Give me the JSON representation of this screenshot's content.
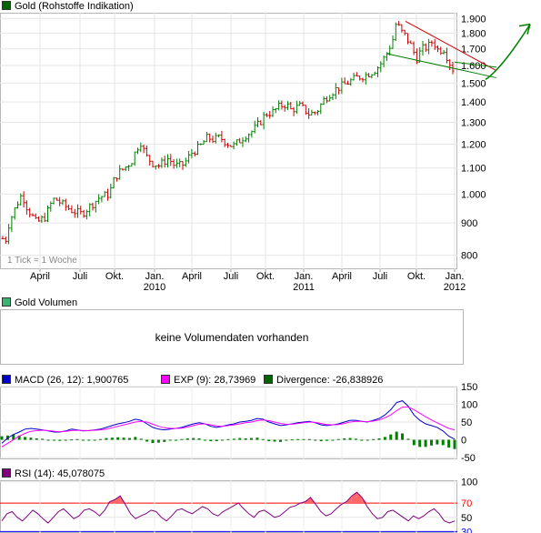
{
  "panels": {
    "price_title": "Gold (Rohstoffe Indikation)",
    "price_color": "#006400",
    "tick_note": "1 Tick = 1 Woche",
    "volume_title": "Gold Volumen",
    "volume_color": "#3cb371",
    "volume_message": "keine Volumendaten vorhanden",
    "macd_label": "MACD (26, 12): 1,900765",
    "macd_color": "#0000cc",
    "exp_label": "EXP (9): 28,73969",
    "exp_color": "#ff00ff",
    "div_label": "Divergence: -26,838926",
    "div_color": "#006400",
    "rsi_label": "RSI (14): 45,078075",
    "rsi_color": "#800080"
  },
  "chart_data": [
    {
      "type": "bar",
      "title": "Gold (Rohstoffe Indikation)",
      "x_month_labels": [
        "April",
        "Juli",
        "Okt.",
        "Jan.",
        "April",
        "Juli",
        "Okt.",
        "Jan.",
        "April",
        "Juli",
        "Okt.",
        "Jan."
      ],
      "x_year_labels": [
        "2010",
        "2011",
        "2012"
      ],
      "y_ticks": [
        "1.900",
        "1.800",
        "1.700",
        "1.600",
        "1.500",
        "1.400",
        "1.300",
        "1.200",
        "1.100",
        "1.000",
        "900",
        "800"
      ],
      "ylim": [
        760,
        1940
      ],
      "log_scale": true,
      "price_path": [
        [
          0,
          880
        ],
        [
          5,
          830
        ],
        [
          10,
          900
        ],
        [
          18,
          960
        ],
        [
          24,
          1000
        ],
        [
          30,
          950
        ],
        [
          40,
          900
        ],
        [
          50,
          920
        ],
        [
          55,
          960
        ],
        [
          60,
          985
        ],
        [
          70,
          960
        ],
        [
          80,
          940
        ],
        [
          90,
          930
        ],
        [
          100,
          960
        ],
        [
          110,
          990
        ],
        [
          120,
          1000
        ],
        [
          125,
          1050
        ],
        [
          130,
          1080
        ],
        [
          140,
          1110
        ],
        [
          145,
          1130
        ],
        [
          150,
          1180
        ],
        [
          155,
          1210
        ],
        [
          160,
          1150
        ],
        [
          168,
          1120
        ],
        [
          175,
          1110
        ],
        [
          180,
          1125
        ],
        [
          185,
          1140
        ],
        [
          192,
          1110
        ],
        [
          200,
          1110
        ],
        [
          205,
          1130
        ],
        [
          210,
          1160
        ],
        [
          220,
          1190
        ],
        [
          228,
          1230
        ],
        [
          235,
          1220
        ],
        [
          242,
          1230
        ],
        [
          248,
          1210
        ],
        [
          256,
          1190
        ],
        [
          262,
          1210
        ],
        [
          270,
          1240
        ],
        [
          278,
          1260
        ],
        [
          286,
          1300
        ],
        [
          292,
          1340
        ],
        [
          300,
          1350
        ],
        [
          308,
          1380
        ],
        [
          315,
          1390
        ],
        [
          320,
          1360
        ],
        [
          330,
          1380
        ],
        [
          340,
          1340
        ],
        [
          348,
          1350
        ],
        [
          356,
          1410
        ],
        [
          362,
          1440
        ],
        [
          370,
          1470
        ],
        [
          378,
          1490
        ],
        [
          385,
          1510
        ],
        [
          392,
          1530
        ],
        [
          400,
          1540
        ],
        [
          408,
          1560
        ],
        [
          414,
          1580
        ],
        [
          420,
          1620
        ],
        [
          426,
          1680
        ],
        [
          432,
          1760
        ],
        [
          436,
          1880
        ],
        [
          440,
          1820
        ],
        [
          446,
          1780
        ],
        [
          452,
          1720
        ],
        [
          458,
          1640
        ],
        [
          464,
          1700
        ],
        [
          470,
          1710
        ],
        [
          476,
          1750
        ],
        [
          482,
          1690
        ],
        [
          488,
          1700
        ],
        [
          494,
          1620
        ],
        [
          500,
          1560
        ],
        [
          504,
          1620
        ],
        [
          508,
          1690
        ],
        [
          512,
          1660
        ]
      ],
      "trendlines": [
        {
          "color": "#cc0000",
          "from": [
            446,
            1880
          ],
          "to": [
            546,
            1570
          ]
        },
        {
          "color": "#008000",
          "from": [
            426,
            1670
          ],
          "to": [
            546,
            1530
          ]
        },
        {
          "color": "#008000",
          "from": [
            500,
            1620
          ],
          "to": [
            546,
            1590
          ]
        }
      ],
      "arrow": {
        "color": "#008000",
        "from": [
          534,
          1520
        ],
        "to": [
          583,
          1860
        ]
      }
    },
    {
      "type": "line",
      "title": "MACD (26, 12)",
      "y_ticks": [
        "150",
        "100",
        "50",
        "0",
        "-50"
      ],
      "ylim": [
        -55,
        150
      ],
      "series": [
        {
          "name": "MACD (26, 12)",
          "color": "#0000cc",
          "values": [
            -10,
            5,
            15,
            22,
            30,
            32,
            30,
            28,
            25,
            22,
            22,
            25,
            30,
            28,
            25,
            26,
            28,
            30,
            35,
            40,
            45,
            48,
            52,
            58,
            55,
            45,
            35,
            30,
            28,
            30,
            32,
            35,
            40,
            45,
            48,
            45,
            38,
            35,
            38,
            42,
            45,
            50,
            52,
            55,
            60,
            58,
            50,
            45,
            40,
            42,
            45,
            48,
            50,
            52,
            48,
            42,
            40,
            42,
            45,
            50,
            55,
            55,
            52,
            50,
            55,
            60,
            70,
            85,
            105,
            110,
            95,
            70,
            55,
            45,
            40,
            35,
            25,
            10,
            2
          ]
        },
        {
          "name": "EXP (9)",
          "color": "#ff00ff",
          "values": [
            -20,
            -10,
            0,
            10,
            18,
            24,
            26,
            27,
            26,
            24,
            23,
            24,
            26,
            27,
            26,
            26,
            27,
            28,
            30,
            34,
            38,
            42,
            46,
            50,
            52,
            50,
            44,
            38,
            34,
            32,
            32,
            33,
            36,
            40,
            44,
            45,
            42,
            39,
            38,
            40,
            42,
            45,
            48,
            50,
            54,
            56,
            54,
            50,
            46,
            44,
            44,
            46,
            48,
            50,
            49,
            46,
            43,
            42,
            43,
            46,
            50,
            52,
            52,
            51,
            53,
            56,
            62,
            70,
            82,
            92,
            92,
            85,
            75,
            65,
            56,
            48,
            40,
            32,
            28
          ]
        }
      ],
      "histogram_color": "#008000",
      "histogram_values": [
        10,
        12,
        15,
        12,
        8,
        6,
        4,
        3,
        0,
        -2,
        -3,
        -2,
        1,
        2,
        -1,
        -2,
        -1,
        2,
        5,
        6,
        7,
        6,
        5,
        8,
        3,
        -5,
        -9,
        -8,
        -6,
        -2,
        0,
        2,
        4,
        5,
        4,
        0,
        -4,
        -4,
        0,
        2,
        3,
        5,
        4,
        5,
        6,
        2,
        -4,
        -5,
        -6,
        -2,
        1,
        2,
        2,
        2,
        -1,
        -4,
        -3,
        0,
        2,
        4,
        5,
        3,
        0,
        -1,
        2,
        4,
        8,
        15,
        23,
        18,
        3,
        -15,
        -20,
        -20,
        -16,
        -13,
        -15,
        -22,
        -26
      ]
    },
    {
      "type": "line",
      "title": "RSI (14)",
      "y_ticks": [
        "100",
        "70",
        "50",
        "30"
      ],
      "ylim": [
        28,
        102
      ],
      "reference_line": {
        "value": 70,
        "color": "#ff0000"
      },
      "reference_line_low": {
        "value": 30,
        "color": "#0000ff"
      },
      "series": [
        {
          "name": "RSI (14)",
          "color": "#800080",
          "values": [
            45,
            55,
            58,
            50,
            45,
            52,
            60,
            55,
            48,
            42,
            50,
            58,
            62,
            55,
            48,
            52,
            60,
            62,
            58,
            52,
            60,
            72,
            75,
            80,
            68,
            55,
            48,
            52,
            55,
            60,
            58,
            50,
            45,
            52,
            60,
            62,
            58,
            55,
            60,
            65,
            62,
            55,
            52,
            58,
            62,
            66,
            70,
            62,
            55,
            50,
            58,
            60,
            55,
            50,
            52,
            58,
            64,
            66,
            70,
            72,
            78,
            68,
            58,
            52,
            55,
            62,
            68,
            72,
            80,
            85,
            78,
            65,
            55,
            48,
            50,
            58,
            60,
            55,
            50,
            45,
            52,
            48,
            52,
            58,
            62,
            55,
            45,
            42,
            45
          ]
        }
      ]
    }
  ]
}
